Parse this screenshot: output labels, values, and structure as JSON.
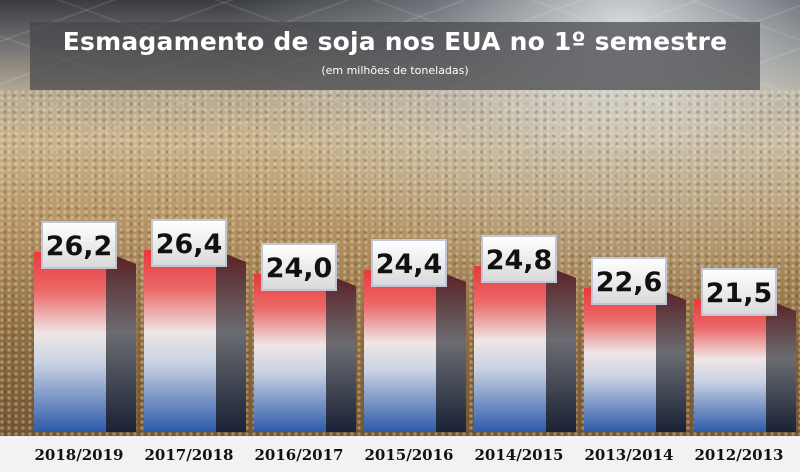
{
  "chart_data": {
    "type": "bar",
    "title": "Esmagamento de soja nos EUA no 1º semestre",
    "subtitle": "(em milhões de toneladas)",
    "categories": [
      "2018/2019",
      "2017/2018",
      "2016/2017",
      "2015/2016",
      "2014/2015",
      "2013/2014",
      "2012/2013"
    ],
    "value_labels": [
      "26,2",
      "26,4",
      "24,0",
      "24,4",
      "24,8",
      "22,6",
      "21,5"
    ],
    "values": [
      26.2,
      26.4,
      24.0,
      24.4,
      24.8,
      22.6,
      21.5
    ],
    "ylim": [
      0,
      28
    ],
    "grid": false,
    "legend": "none",
    "colors": {
      "bar_top": "#e83a3a",
      "bar_bottom": "#2e5aa8",
      "bar_side": "#1c2330",
      "label_box": "#ececec",
      "title_box": "#46464b"
    }
  }
}
